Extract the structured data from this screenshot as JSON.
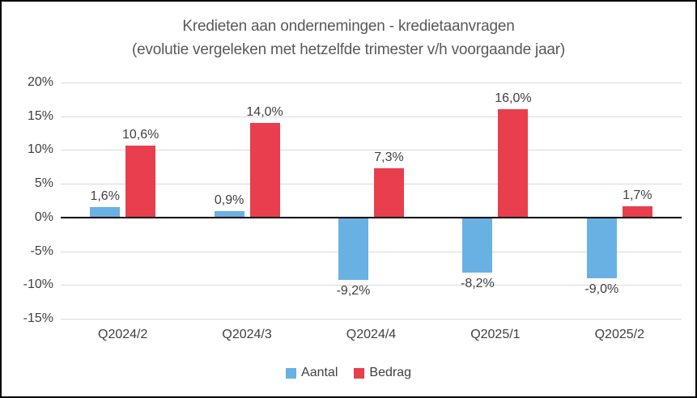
{
  "title": {
    "line1": "Kredieten aan ondernemingen - kredietaanvragen",
    "line2": "(evolutie vergeleken met hetzelfde trimester v/h voorgaande jaar)"
  },
  "chart_data": {
    "type": "bar",
    "categories": [
      "Q2024/2",
      "Q2024/3",
      "Q2024/4",
      "Q2025/1",
      "Q2025/2"
    ],
    "series": [
      {
        "name": "Aantal",
        "color": "#69B1E3",
        "values": [
          1.6,
          0.9,
          -9.2,
          -8.2,
          -9.0
        ],
        "labels": [
          "1,6%",
          "0,9%",
          "-9,2%",
          "-8,2%",
          "-9,0%"
        ]
      },
      {
        "name": "Bedrag",
        "color": "#E83E4D",
        "values": [
          10.6,
          14.0,
          7.3,
          16.0,
          1.7
        ],
        "labels": [
          "10,6%",
          "14,0%",
          "7,3%",
          "16,0%",
          "1,7%"
        ]
      }
    ],
    "ylim": [
      -15,
      20
    ],
    "yticks": [
      {
        "value": 20,
        "label": "20%"
      },
      {
        "value": 15,
        "label": "15%"
      },
      {
        "value": 10,
        "label": "10%"
      },
      {
        "value": 5,
        "label": "5%"
      },
      {
        "value": 0,
        "label": "0%"
      },
      {
        "value": -5,
        "label": "-5%"
      },
      {
        "value": -10,
        "label": "-10%"
      },
      {
        "value": -15,
        "label": "-15%"
      }
    ],
    "grid": true,
    "legend_position": "bottom"
  },
  "colors": {
    "grid": "#D9D9D9",
    "zero_axis": "#000000",
    "title_text": "#595959",
    "label_text": "#404040",
    "aantal_blue": "#69B1E3",
    "bedrag_red": "#E83E4D"
  }
}
